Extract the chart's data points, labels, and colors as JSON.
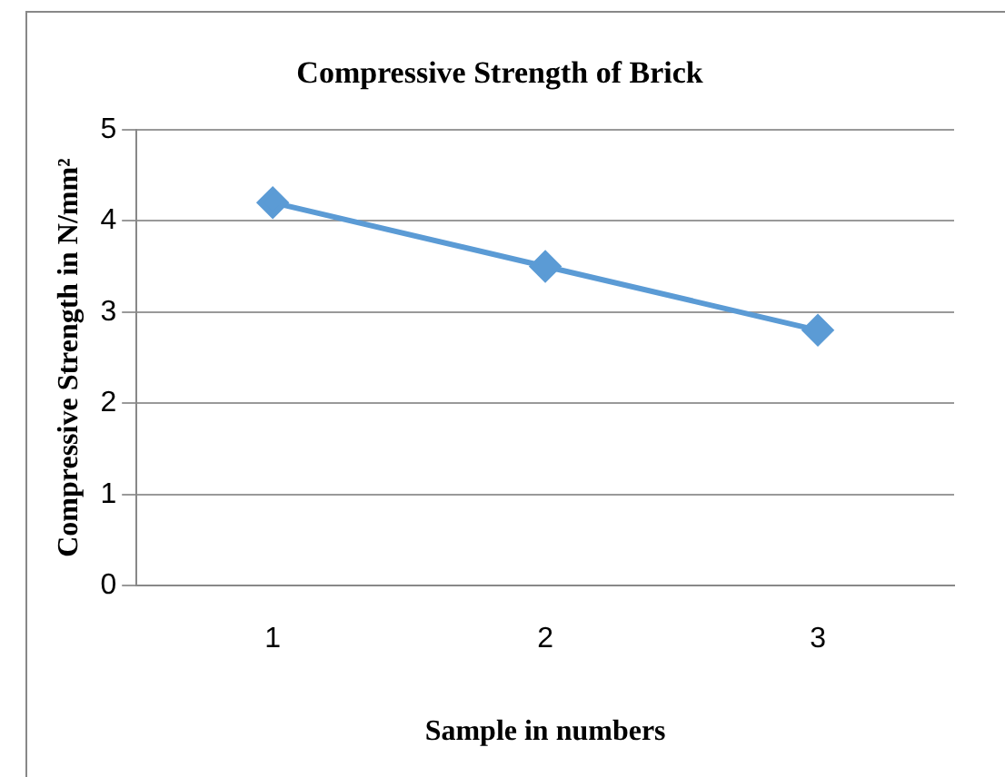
{
  "chart_data": {
    "type": "line",
    "title": "Compressive Strength of Brick",
    "xlabel": "Sample in numbers",
    "ylabel": "Compressive Strength in N/mm²",
    "categories": [
      "1",
      "2",
      "3"
    ],
    "series": [
      {
        "color": "#5b9bd5",
        "values": [
          4.2,
          3.5,
          2.8
        ]
      }
    ],
    "ylim": [
      0,
      5
    ],
    "yticks": [
      0,
      1,
      2,
      3,
      4,
      5
    ],
    "grid": "y",
    "legend": false,
    "marker": "diamond",
    "line_style": "solid"
  }
}
